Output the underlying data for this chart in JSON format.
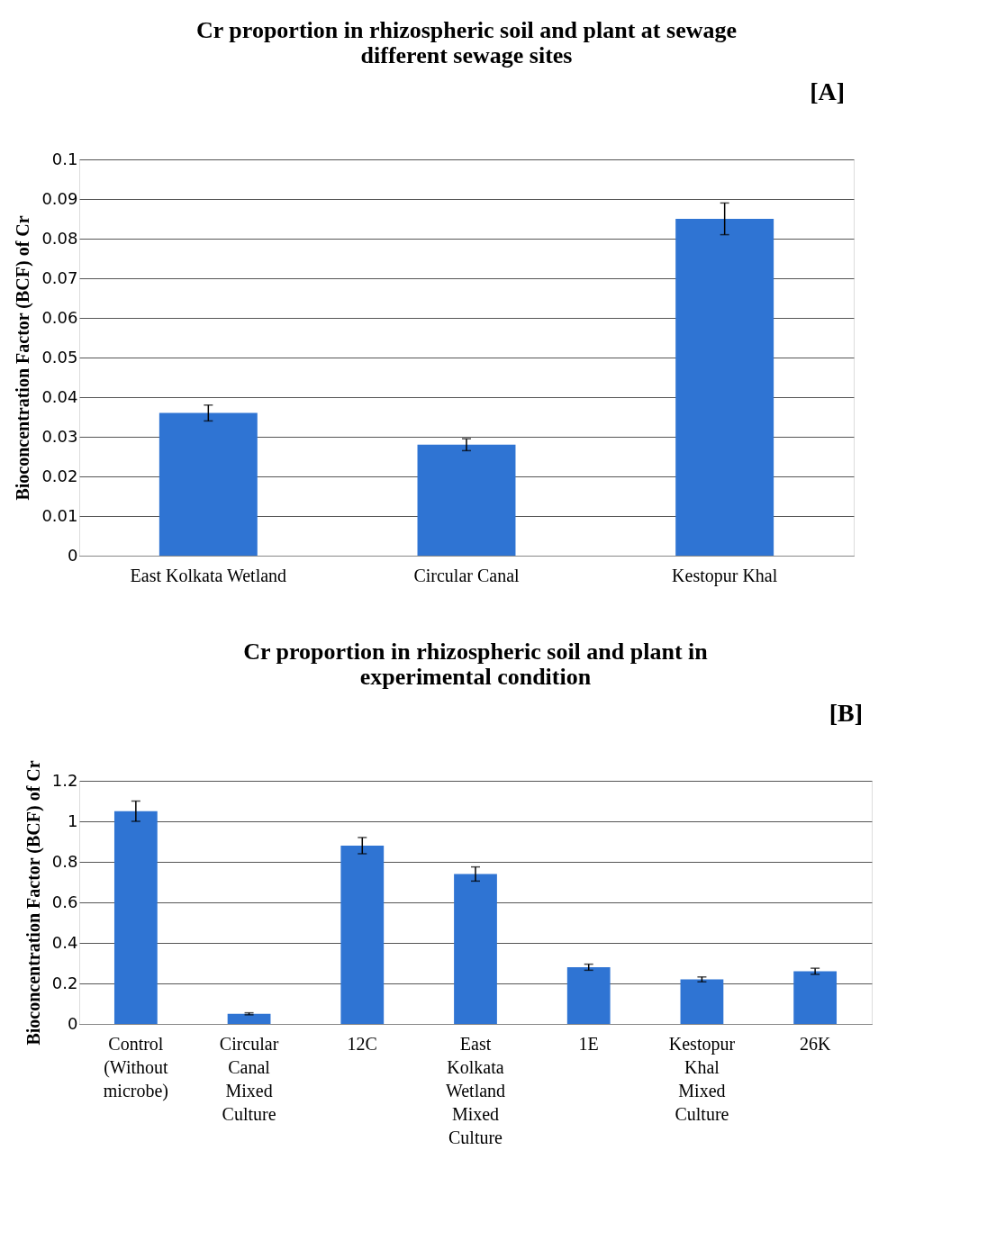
{
  "chart_data": [
    {
      "type": "bar",
      "title": "Cr proportion in rhizospheric soil and plant at sewage different sewage sites",
      "ylabel": "Bioconcentration Factor (BCF) of Cr",
      "annotations": [
        "[A]"
      ],
      "categories": [
        "East Kolkata Wetland",
        "Circular Canal",
        "Kestopur Khal"
      ],
      "values": [
        0.036,
        0.028,
        0.085
      ],
      "errors": [
        0.002,
        0.0015,
        0.004
      ],
      "color": "#2f74d3",
      "ylim": [
        0,
        0.1
      ],
      "yticks": [
        {
          "value": 0,
          "label": "0"
        },
        0.01,
        0.02,
        0.03,
        0.04,
        0.05,
        0.06,
        0.07,
        0.08,
        0.09,
        0.1
      ],
      "grid": "y"
    },
    {
      "type": "bar",
      "title": "Cr proportion in rhizospheric soil and plant in experimental condition",
      "ylabel": "Bioconcentration Factor (BCF) of Cr",
      "annotations": [
        "[B]"
      ],
      "categories": [
        "Control (Without microbe)",
        "Circular Canal Mixed Culture",
        "12C",
        "East Kolkata Wetland Mixed Culture",
        "1E",
        "Kestopur Khal Mixed Culture",
        "26K"
      ],
      "values": [
        1.05,
        0.05,
        0.88,
        0.74,
        0.28,
        0.22,
        0.26
      ],
      "errors": [
        0.05,
        0.005,
        0.04,
        0.035,
        0.015,
        0.012,
        0.015
      ],
      "color": "#2f74d3",
      "ylim": [
        0,
        1.2
      ],
      "yticks": [
        0,
        0.2,
        0.4,
        0.6,
        0.8,
        1,
        1.2
      ],
      "grid": "y"
    }
  ]
}
